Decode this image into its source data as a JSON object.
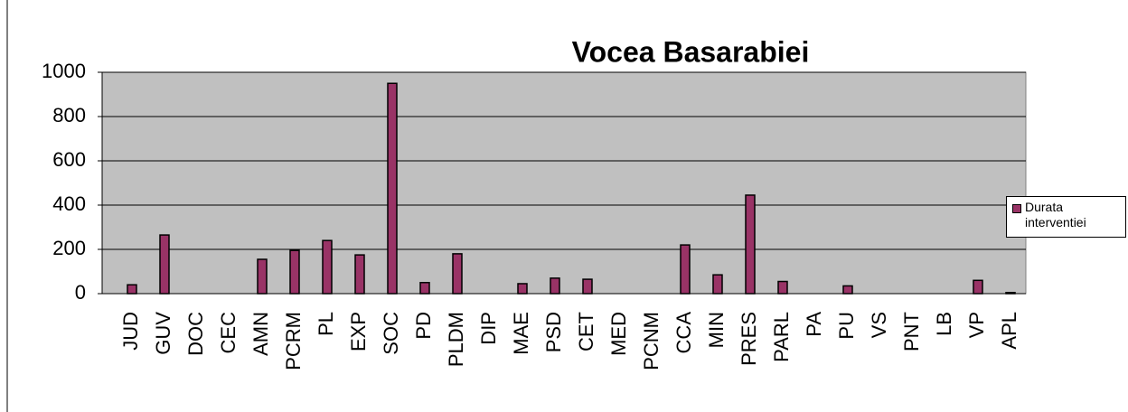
{
  "chart_data": {
    "type": "bar",
    "title": "Vocea Basarabiei",
    "categories": [
      "JUD",
      "GUV",
      "DOC",
      "CEC",
      "AMN",
      "PCRM",
      "PL",
      "EXP",
      "SOC",
      "PD",
      "PLDM",
      "DIP",
      "MAE",
      "PSD",
      "CET",
      "MED",
      "PCNM",
      "CCA",
      "MIN",
      "PRES",
      "PARL",
      "PA",
      "PU",
      "VS",
      "PNT",
      "LB",
      "VP",
      "APL"
    ],
    "series": [
      {
        "name": "Durata interventiei",
        "color": "#993366",
        "values": [
          40,
          265,
          0,
          0,
          155,
          195,
          240,
          175,
          950,
          50,
          180,
          0,
          45,
          70,
          65,
          0,
          0,
          220,
          85,
          445,
          55,
          0,
          35,
          0,
          0,
          0,
          60,
          5
        ]
      }
    ],
    "ylim": [
      0,
      1000
    ],
    "yticks": [
      0,
      200,
      400,
      600,
      800,
      1000
    ],
    "grid": true,
    "legend": "right"
  }
}
